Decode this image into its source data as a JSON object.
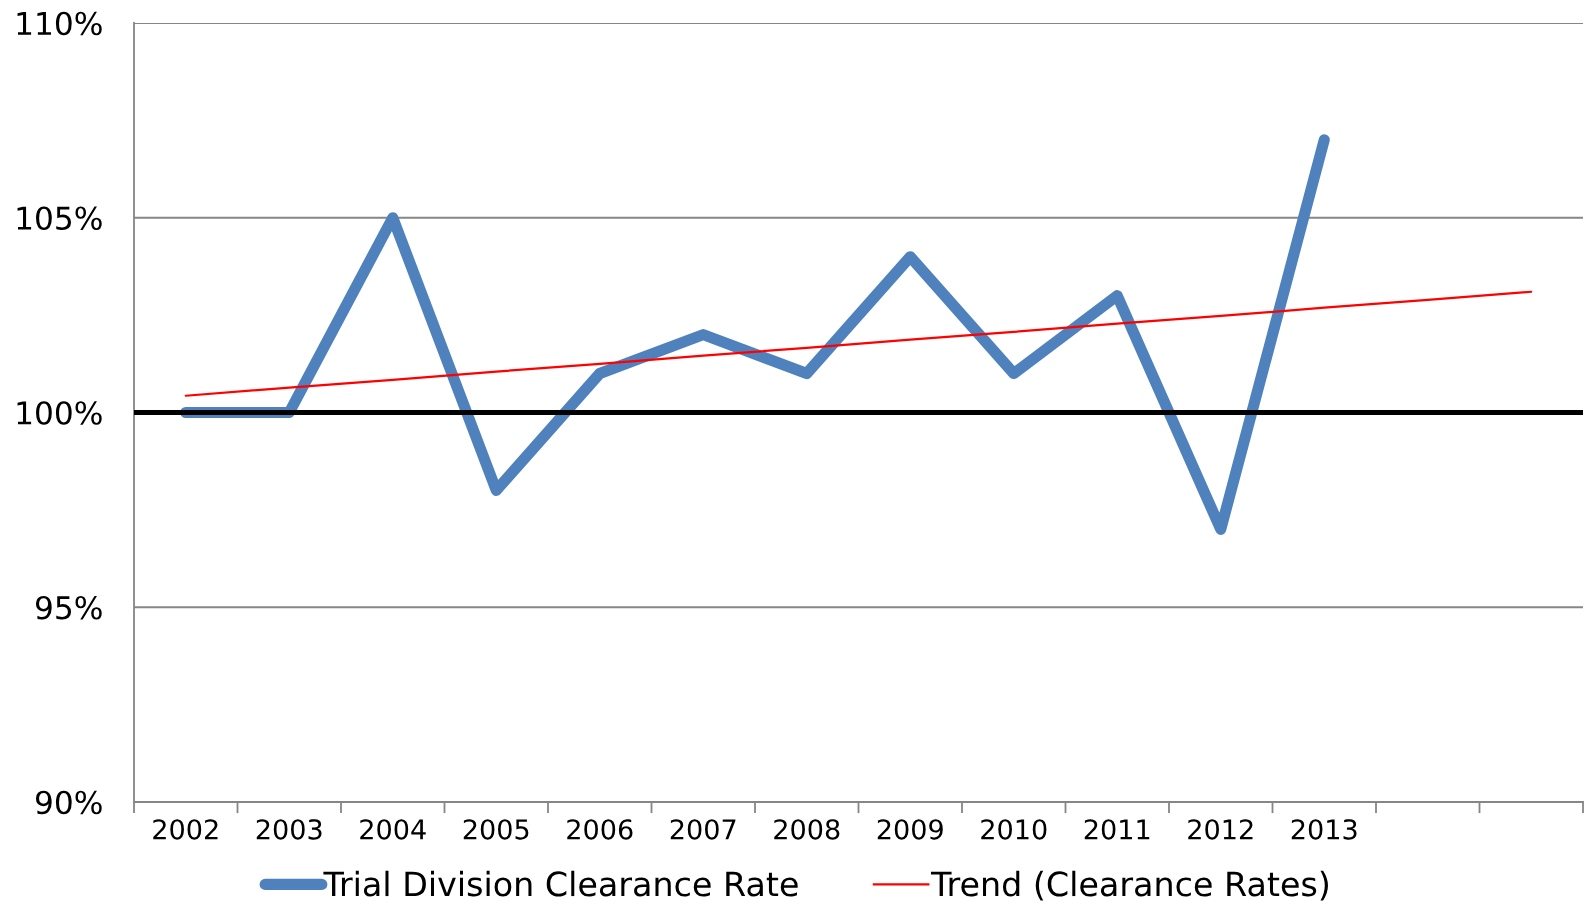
{
  "chart_data": {
    "type": "line",
    "categories": [
      "2002",
      "2003",
      "2004",
      "2005",
      "2006",
      "2007",
      "2008",
      "2009",
      "2010",
      "2011",
      "2012",
      "2013",
      null,
      null
    ],
    "series": [
      {
        "name": "Trial Division Clearance Rate",
        "color": "#4f81bd",
        "values": [
          100,
          100,
          105,
          98,
          101,
          102,
          101,
          104,
          101,
          103,
          97,
          107,
          null,
          null
        ]
      },
      {
        "name": "Trend (Clearance Rates)",
        "type": "line",
        "color": "#ff0000",
        "values": [
          100.43,
          100.64,
          100.84,
          101.05,
          101.25,
          101.46,
          101.66,
          101.87,
          102.07,
          102.28,
          102.48,
          102.69,
          102.89,
          103.1
        ]
      }
    ],
    "ylim": [
      90,
      110
    ],
    "yticks": [
      {
        "value": 90,
        "label": "90%"
      },
      {
        "value": 95,
        "label": "95%"
      },
      {
        "value": 100,
        "label": "100%"
      },
      {
        "value": 105,
        "label": "105%"
      },
      {
        "value": 110,
        "label": "110%"
      }
    ],
    "ref_lines": [
      {
        "axis": "y",
        "value": 100,
        "label": null,
        "color": "#000000",
        "line_style": "solid"
      }
    ],
    "grid": "y",
    "legend": "bottom",
    "marker": "none",
    "line_style": "solid"
  }
}
